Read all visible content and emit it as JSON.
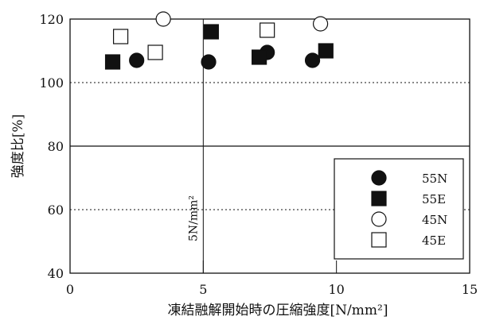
{
  "chart_data": {
    "type": "scatter",
    "title": "",
    "xlabel": "凍結融解開始時の圧縮強度[N/mm²]",
    "ylabel": "強度比[%]",
    "xlim": [
      0,
      15
    ],
    "ylim": [
      40,
      120
    ],
    "xticks": [
      0,
      5,
      10,
      15
    ],
    "yticks": [
      40,
      60,
      80,
      100,
      120
    ],
    "legend_position": "bottom-right",
    "annotation": "5N/mm²",
    "threshold_x": 5,
    "series": [
      {
        "name": "55N",
        "marker": "filled-circle",
        "x": [
          2.5,
          5.2,
          7.4,
          9.1
        ],
        "y": [
          107,
          106.5,
          109.5,
          107
        ]
      },
      {
        "name": "55E",
        "marker": "filled-square",
        "x": [
          1.6,
          5.3,
          7.1,
          9.6
        ],
        "y": [
          106.5,
          116,
          108,
          110
        ]
      },
      {
        "name": "45N",
        "marker": "open-circle",
        "x": [
          3.5,
          9.4
        ],
        "y": [
          120,
          118.5
        ]
      },
      {
        "name": "45E",
        "marker": "open-square",
        "x": [
          1.9,
          3.2,
          7.4
        ],
        "y": [
          114.5,
          109.5,
          116.5
        ]
      }
    ]
  }
}
